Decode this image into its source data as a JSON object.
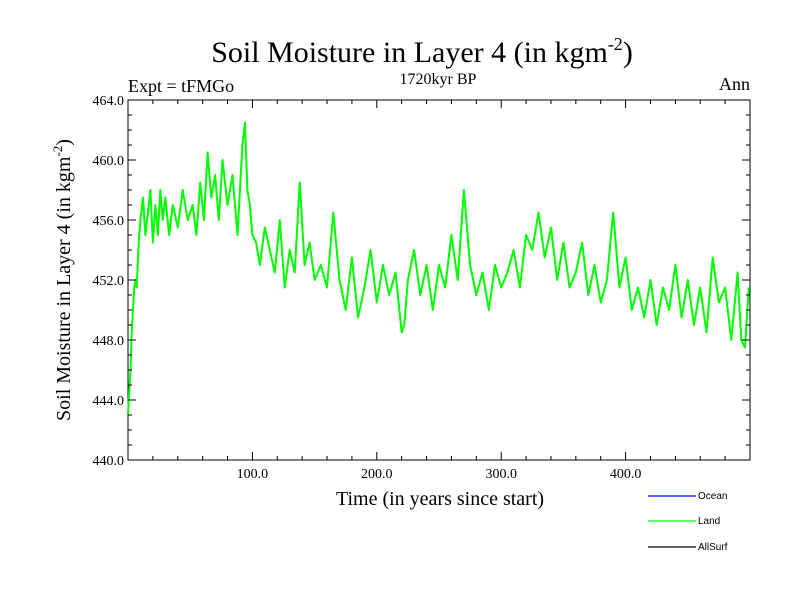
{
  "chart_data": {
    "type": "line",
    "title": "Soil Moisture in Layer 4 (in kgm",
    "title_sup": "-2",
    "title_close": ")",
    "subtitle_center": "1720kyr BP",
    "subtitle_left": "Expt = tFMGo",
    "subtitle_right": "Ann",
    "xlabel": "Time (in years since start)",
    "ylabel": "Soil Moisture in Layer 4 (in kgm",
    "ylabel_sup": "-2",
    "ylabel_close": ")",
    "xlim": [
      0,
      500
    ],
    "ylim": [
      440,
      464
    ],
    "x_ticks": [
      {
        "value": 100,
        "label": "100.0"
      },
      {
        "value": 200,
        "label": "200.0"
      },
      {
        "value": 300,
        "label": "300.0"
      },
      {
        "value": 400,
        "label": "400.0"
      }
    ],
    "y_ticks": [
      {
        "value": 440,
        "label": "440.0"
      },
      {
        "value": 444,
        "label": "444.0"
      },
      {
        "value": 448,
        "label": "448.0"
      },
      {
        "value": 452,
        "label": "452.0"
      },
      {
        "value": 456,
        "label": "456.0"
      },
      {
        "value": 460,
        "label": "460.0"
      },
      {
        "value": 464,
        "label": "464.0"
      }
    ],
    "legend": [
      {
        "name": "Ocean",
        "color": "#0000ff"
      },
      {
        "name": "Land",
        "color": "#00ff00"
      },
      {
        "name": "AllSurf",
        "color": "#000000"
      }
    ],
    "legend_position": "bottom-right",
    "series": [
      {
        "name": "Land",
        "color": "#00ff00",
        "x": [
          0,
          1,
          2,
          3,
          4,
          5,
          6,
          7,
          8,
          9,
          10,
          12,
          14,
          16,
          18,
          20,
          22,
          24,
          26,
          28,
          30,
          33,
          36,
          40,
          44,
          48,
          52,
          55,
          58,
          61,
          64,
          67,
          70,
          73,
          76,
          80,
          84,
          88,
          92,
          94,
          96,
          98,
          100,
          103,
          106,
          110,
          114,
          118,
          122,
          126,
          130,
          134,
          138,
          142,
          146,
          150,
          155,
          160,
          165,
          170,
          175,
          180,
          185,
          190,
          195,
          200,
          205,
          210,
          215,
          220,
          222,
          225,
          230,
          235,
          240,
          245,
          250,
          255,
          260,
          265,
          270,
          275,
          280,
          285,
          290,
          295,
          300,
          305,
          310,
          315,
          320,
          325,
          330,
          335,
          340,
          345,
          350,
          355,
          360,
          365,
          370,
          375,
          380,
          385,
          390,
          395,
          400,
          405,
          410,
          415,
          420,
          425,
          430,
          435,
          440,
          445,
          450,
          455,
          460,
          465,
          470,
          475,
          480,
          485,
          490,
          493,
          496,
          499
        ],
        "values": [
          443.0,
          444.5,
          446.0,
          448.5,
          450.0,
          451.5,
          452.0,
          451.5,
          453.5,
          455.0,
          456.0,
          457.5,
          455.0,
          456.5,
          458.0,
          454.5,
          457.0,
          455.0,
          458.0,
          456.0,
          457.5,
          455.0,
          457.0,
          455.5,
          458.0,
          456.0,
          457.0,
          455.0,
          458.5,
          456.0,
          460.5,
          457.5,
          459.0,
          456.0,
          460.0,
          457.0,
          459.0,
          455.0,
          461.0,
          462.5,
          458.0,
          457.0,
          455.0,
          454.5,
          453.0,
          455.5,
          454.0,
          452.5,
          456.0,
          451.5,
          454.0,
          452.5,
          458.5,
          453.0,
          454.5,
          452.0,
          453.0,
          451.5,
          456.5,
          452.0,
          450.0,
          453.5,
          449.5,
          451.5,
          454.0,
          450.5,
          453.0,
          451.0,
          452.5,
          448.5,
          449.0,
          452.0,
          454.0,
          451.0,
          453.0,
          450.0,
          453.0,
          451.5,
          455.0,
          452.0,
          458.0,
          453.0,
          451.0,
          452.5,
          450.0,
          453.0,
          451.5,
          452.5,
          454.0,
          451.5,
          455.0,
          454.0,
          456.5,
          453.5,
          455.5,
          452.0,
          454.5,
          451.5,
          452.5,
          454.5,
          451.0,
          453.0,
          450.5,
          452.0,
          456.5,
          451.5,
          453.5,
          450.0,
          451.5,
          449.5,
          452.0,
          449.0,
          451.5,
          450.0,
          453.0,
          449.5,
          452.0,
          449.0,
          451.5,
          448.5,
          453.5,
          450.5,
          451.5,
          448.0,
          452.5,
          448.0,
          447.5,
          451.5
        ]
      }
    ]
  }
}
